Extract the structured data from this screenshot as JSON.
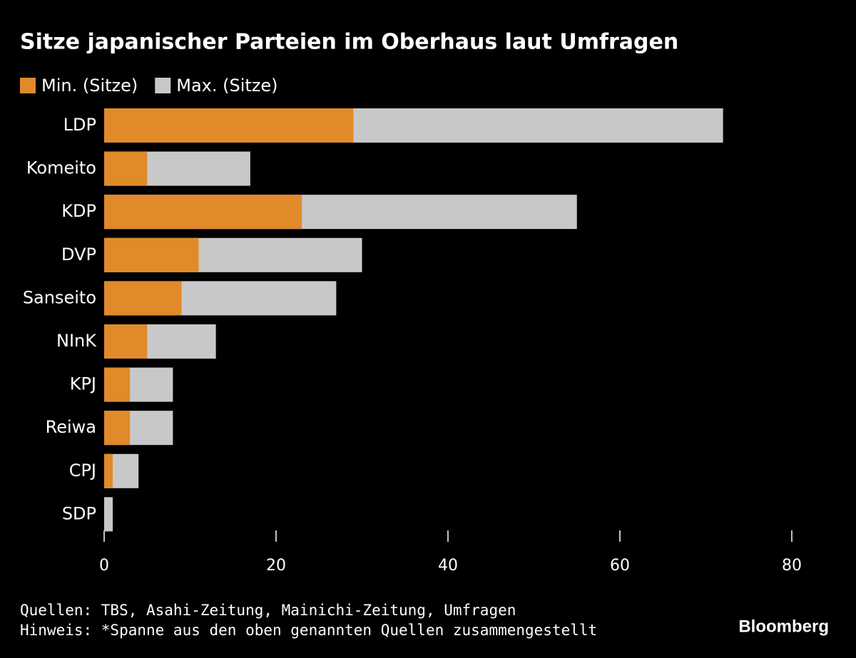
{
  "chart_data": {
    "type": "bar",
    "orientation": "horizontal",
    "title": "Sitze japanischer Parteien im Oberhaus laut Umfragen",
    "categories": [
      "LDP",
      "Komeito",
      "KDP",
      "DVP",
      "Sanseito",
      "NInK",
      "KPJ",
      "Reiwa",
      "CPJ",
      "SDP"
    ],
    "series": [
      {
        "name": "Min. (Sitze)",
        "color": "#e08a2a",
        "values": [
          29,
          5,
          23,
          11,
          9,
          5,
          3,
          3,
          1,
          0
        ]
      },
      {
        "name": "Max. (Sitze)",
        "color": "#c8c8c8",
        "values": [
          72,
          17,
          55,
          30,
          27,
          13,
          8,
          8,
          4,
          1
        ]
      }
    ],
    "xlim": [
      0,
      80
    ],
    "xticks": [
      0,
      20,
      40,
      60,
      80
    ],
    "grid": false,
    "source": "Quellen: TBS, Asahi-Zeitung, Mainichi-Zeitung, Umfragen",
    "note": "Hinweis: *Spanne aus den oben genannten Quellen zusammengestellt",
    "brand": "Bloomberg"
  }
}
